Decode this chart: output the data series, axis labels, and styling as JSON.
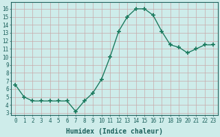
{
  "x": [
    0,
    1,
    2,
    3,
    4,
    5,
    6,
    7,
    8,
    9,
    10,
    11,
    12,
    13,
    14,
    15,
    16,
    17,
    18,
    19,
    20,
    21,
    22,
    23
  ],
  "y": [
    6.5,
    5.0,
    4.5,
    4.5,
    4.5,
    4.5,
    4.5,
    3.2,
    4.5,
    5.5,
    7.2,
    10.0,
    13.2,
    15.0,
    16.0,
    16.0,
    15.2,
    13.2,
    11.5,
    11.2,
    10.5,
    11.0,
    11.5,
    11.5
  ],
  "line_color": "#1a7a5e",
  "marker": "+",
  "marker_size": 4,
  "bg_color": "#ceecea",
  "grid_color": "#c8a8a8",
  "xlabel": "Humidex (Indice chaleur)",
  "xlim": [
    -0.5,
    23.5
  ],
  "ylim": [
    2.7,
    16.8
  ],
  "yticks": [
    3,
    4,
    5,
    6,
    7,
    8,
    9,
    10,
    11,
    12,
    13,
    14,
    15,
    16
  ],
  "xticks": [
    0,
    1,
    2,
    3,
    4,
    5,
    6,
    7,
    8,
    9,
    10,
    11,
    12,
    13,
    14,
    15,
    16,
    17,
    18,
    19,
    20,
    21,
    22,
    23
  ],
  "font_color": "#1a5f5a",
  "tick_fontsize": 5.5,
  "xlabel_fontsize": 7.0,
  "linewidth": 1.0
}
